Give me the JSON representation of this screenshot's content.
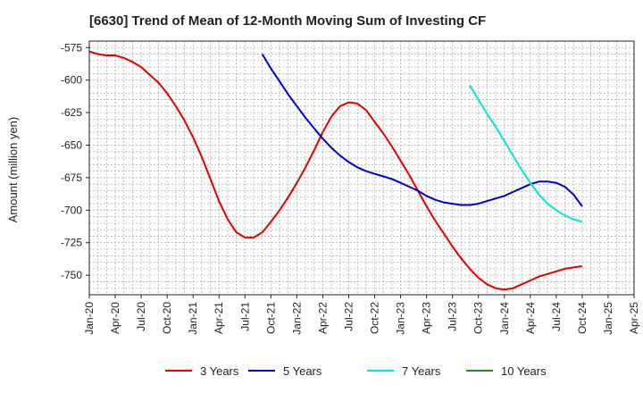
{
  "chart_data": {
    "type": "line",
    "title": "[6630]  Trend of Mean of 12-Month Moving Sum of Investing CF",
    "xlabel": "",
    "ylabel": "Amount (million yen)",
    "ylim": [
      -765,
      -570
    ],
    "yticks": [
      -575,
      -600,
      -625,
      -650,
      -675,
      -700,
      -725,
      -750
    ],
    "xlim": [
      "2020-01",
      "2025-04"
    ],
    "xticks": [
      "Jan-20",
      "Apr-20",
      "Jul-20",
      "Oct-20",
      "Jan-21",
      "Apr-21",
      "Jul-21",
      "Oct-21",
      "Jan-22",
      "Apr-22",
      "Jul-22",
      "Oct-22",
      "Jan-23",
      "Apr-23",
      "Jul-23",
      "Oct-23",
      "Jan-24",
      "Apr-24",
      "Jul-24",
      "Oct-24",
      "Jan-25",
      "Apr-25"
    ],
    "grid": true,
    "legend_position": "bottom",
    "series": [
      {
        "name": "3 Years",
        "color": "#e60000",
        "x": [
          "2020-01",
          "2020-02",
          "2020-03",
          "2020-04",
          "2020-05",
          "2020-06",
          "2020-07",
          "2020-08",
          "2020-09",
          "2020-10",
          "2020-11",
          "2020-12",
          "2021-01",
          "2021-02",
          "2021-03",
          "2021-04",
          "2021-05",
          "2021-06",
          "2021-07",
          "2021-08",
          "2021-09",
          "2021-10",
          "2021-11",
          "2021-12",
          "2022-01",
          "2022-02",
          "2022-03",
          "2022-04",
          "2022-05",
          "2022-06",
          "2022-07",
          "2022-08",
          "2022-09",
          "2022-10",
          "2022-11",
          "2022-12",
          "2023-01",
          "2023-02",
          "2023-03",
          "2023-04",
          "2023-05",
          "2023-06",
          "2023-07",
          "2023-08",
          "2023-09",
          "2023-10",
          "2023-11",
          "2023-12",
          "2024-01",
          "2024-02",
          "2024-03",
          "2024-04",
          "2024-05",
          "2024-06",
          "2024-07",
          "2024-08",
          "2024-09",
          "2024-10"
        ],
        "y": [
          -578,
          -580,
          -581,
          -581,
          -583,
          -586,
          -590,
          -596,
          -602,
          -610,
          -620,
          -631,
          -644,
          -659,
          -676,
          -693,
          -707,
          -717,
          -721,
          -721,
          -717,
          -709,
          -700,
          -690,
          -679,
          -667,
          -654,
          -640,
          -628,
          -620,
          -617,
          -618,
          -623,
          -632,
          -641,
          -651,
          -662,
          -673,
          -685,
          -697,
          -708,
          -718,
          -728,
          -737,
          -745,
          -752,
          -757,
          -760,
          -761,
          -760,
          -757,
          -754,
          -751,
          -749,
          -747,
          -745,
          -744,
          -743
        ]
      },
      {
        "name": "5 Years",
        "color": "#0000cc",
        "x": [
          "2021-09",
          "2021-10",
          "2021-11",
          "2021-12",
          "2022-01",
          "2022-02",
          "2022-03",
          "2022-04",
          "2022-05",
          "2022-06",
          "2022-07",
          "2022-08",
          "2022-09",
          "2022-10",
          "2022-11",
          "2022-12",
          "2023-01",
          "2023-02",
          "2023-03",
          "2023-04",
          "2023-05",
          "2023-06",
          "2023-07",
          "2023-08",
          "2023-09",
          "2023-10",
          "2023-11",
          "2023-12",
          "2024-01",
          "2024-02",
          "2024-03",
          "2024-04",
          "2024-05",
          "2024-06",
          "2024-07",
          "2024-08",
          "2024-09",
          "2024-10"
        ],
        "y": [
          -580,
          -591,
          -601,
          -611,
          -620,
          -629,
          -637,
          -645,
          -652,
          -658,
          -663,
          -667,
          -670,
          -672,
          -674,
          -676,
          -679,
          -682,
          -685,
          -689,
          -692,
          -694,
          -695,
          -696,
          -696,
          -695,
          -693,
          -691,
          -689,
          -686,
          -683,
          -680,
          -678,
          -678,
          -679,
          -682,
          -688,
          -697
        ]
      },
      {
        "name": "7 Years",
        "color": "#00e5e5",
        "x": [
          "2023-09",
          "2023-10",
          "2023-11",
          "2023-12",
          "2024-01",
          "2024-02",
          "2024-03",
          "2024-04",
          "2024-05",
          "2024-06",
          "2024-07",
          "2024-08",
          "2024-09",
          "2024-10"
        ],
        "y": [
          -604,
          -615,
          -626,
          -636,
          -647,
          -658,
          -669,
          -679,
          -688,
          -695,
          -700,
          -704,
          -707,
          -709
        ]
      },
      {
        "name": "10 Years",
        "color": "#228b22",
        "x": [],
        "y": []
      }
    ]
  }
}
